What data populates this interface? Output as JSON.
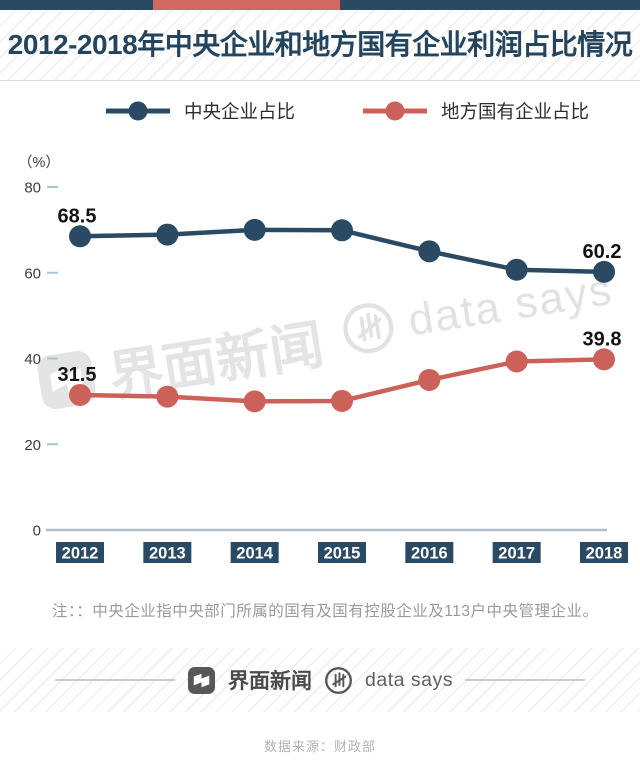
{
  "top_bar": {
    "blue": "#2a4a63",
    "red": "#d2685f"
  },
  "header": {
    "title": "2012-2018年中央企业和地方国有企业利润占比情况"
  },
  "legend": {
    "items": [
      {
        "label": "中央企业占比"
      },
      {
        "label": "地方国有企业占比"
      }
    ]
  },
  "chart_data": {
    "type": "line",
    "title": "2012-2018年中央企业和地方国有企业利润占比情况",
    "unit_label": "（%）",
    "categories": [
      "2012",
      "2013",
      "2014",
      "2015",
      "2016",
      "2017",
      "2018"
    ],
    "series": [
      {
        "name": "中央企业占比",
        "color": "#2a4a63",
        "values": [
          68.5,
          68.9,
          70.0,
          69.9,
          65.0,
          60.7,
          60.2
        ],
        "endpoint_labels": {
          "start": "68.5",
          "end": "60.2"
        }
      },
      {
        "name": "地方国有企业占比",
        "color": "#cb6159",
        "values": [
          31.5,
          31.1,
          30.0,
          30.1,
          35.0,
          39.3,
          39.8
        ],
        "endpoint_labels": {
          "start": "31.5",
          "end": "39.8"
        }
      }
    ],
    "yticks": [
      0,
      20,
      40,
      60,
      80
    ],
    "ylim": [
      0,
      85
    ],
    "grid": false,
    "legend_position": "top"
  },
  "watermarks": {
    "jiemian": "界面新闻",
    "datasays": "data says"
  },
  "note": "注：：中央企业指中央部门所属的国有及国有控股企业及113户中央管理企业。",
  "footer": {
    "jiemian_label": "界面新闻",
    "datasays_label": "data says",
    "source": "数据来源：财政部"
  },
  "colors": {
    "axis_text": "#3d3d3d",
    "tick_dash": "#a9c4d2",
    "axis_line": "#b4c0c8",
    "data_label": "#131313",
    "category_box": "#2a4a63",
    "category_text": "#ffffff"
  }
}
